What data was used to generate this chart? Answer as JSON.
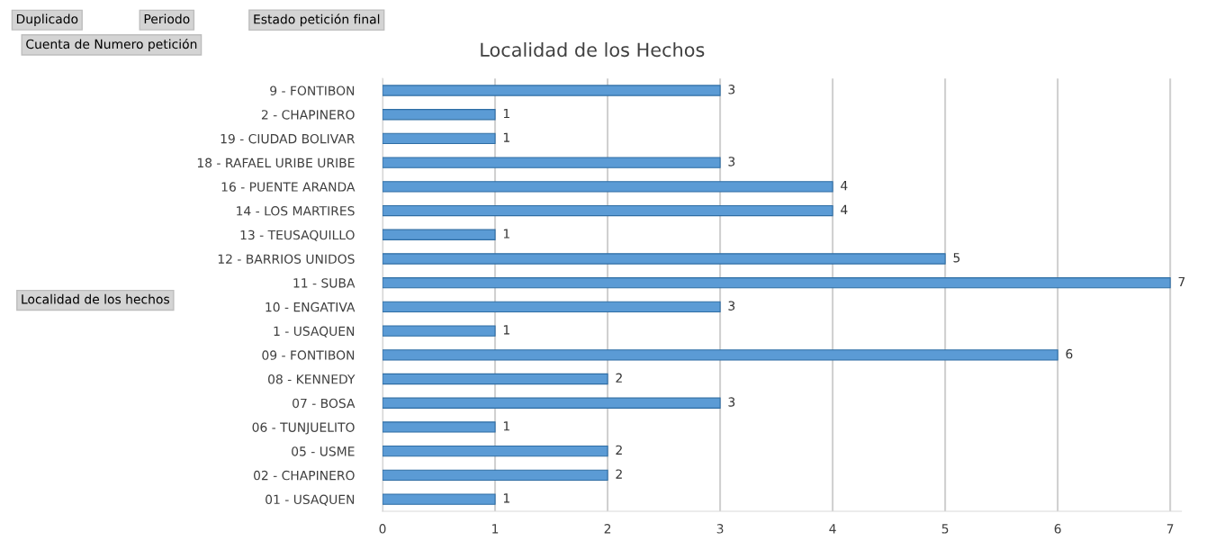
{
  "chart_data": {
    "type": "bar",
    "orientation": "horizontal",
    "title": "Localidad de los Hechos",
    "categories": [
      "9 - FONTIBON",
      "2 - CHAPINERO",
      "19 - CIUDAD BOLIVAR",
      "18 - RAFAEL URIBE URIBE",
      "16 - PUENTE ARANDA",
      "14 - LOS MARTIRES",
      "13 - TEUSAQUILLO",
      "12 - BARRIOS UNIDOS",
      "11 - SUBA",
      "10 - ENGATIVA",
      "1 - USAQUEN",
      "09 - FONTIBON",
      "08 - KENNEDY",
      "07 - BOSA",
      "06 - TUNJUELITO",
      "05 - USME",
      "02 - CHAPINERO",
      "01 - USAQUEN"
    ],
    "values": [
      3,
      1,
      1,
      3,
      4,
      4,
      1,
      5,
      7,
      3,
      1,
      6,
      2,
      3,
      1,
      2,
      2,
      1
    ],
    "color": "#5b9bd5",
    "xlim": [
      0,
      7.1
    ],
    "xticks": [
      0,
      1,
      2,
      3,
      4,
      5,
      6,
      7
    ],
    "grid": "x",
    "data_labels": true,
    "legend": false,
    "annotations": [
      "Duplicado",
      "Periodo",
      "Estado petición final",
      "Cuenta de Numero petición",
      "Localidad de los hechos"
    ]
  }
}
